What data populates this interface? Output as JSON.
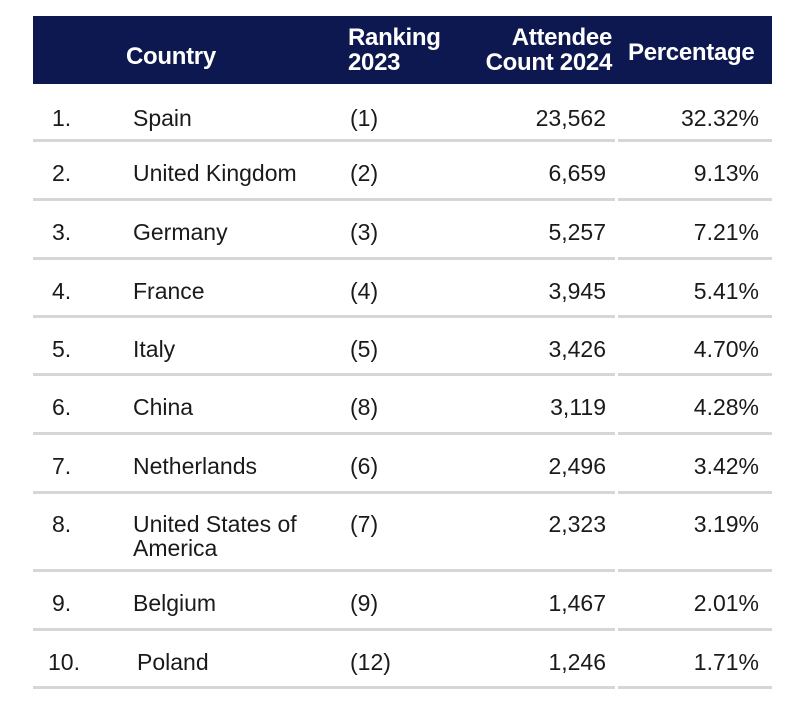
{
  "table": {
    "headers": {
      "country": "Country",
      "ranking_line1": "Ranking",
      "ranking_line2": "2023",
      "count_line1": "Attendee",
      "count_line2": "Count 2024",
      "percentage": "Percentage"
    },
    "rows": [
      {
        "num": "1.",
        "country": "Spain",
        "rank": "(1)",
        "count": "23,562",
        "pct": "32.32%"
      },
      {
        "num": "2.",
        "country": "United Kingdom",
        "rank": "(2)",
        "count": "6,659",
        "pct": "9.13%"
      },
      {
        "num": "3.",
        "country": "Germany",
        "rank": "(3)",
        "count": "5,257",
        "pct": "7.21%"
      },
      {
        "num": "4.",
        "country": "France",
        "rank": "(4)",
        "count": "3,945",
        "pct": "5.41%"
      },
      {
        "num": "5.",
        "country": "Italy",
        "rank": "(5)",
        "count": "3,426",
        "pct": "4.70%"
      },
      {
        "num": "6.",
        "country": "China",
        "rank": "(8)",
        "count": "3,119",
        "pct": "4.28%"
      },
      {
        "num": "7.",
        "country": "Netherlands",
        "rank": "(6)",
        "count": "2,496",
        "pct": "3.42%"
      },
      {
        "num": "8.",
        "country": "United States of America",
        "rank": "(7)",
        "count": "2,323",
        "pct": "3.19%"
      },
      {
        "num": "9.",
        "country": "Belgium",
        "rank": "(9)",
        "count": "1,467",
        "pct": "2.01%"
      },
      {
        "num": "10.",
        "country": "Poland",
        "rank": "(12)",
        "count": "1,246",
        "pct": "1.71%"
      }
    ]
  },
  "colors": {
    "header_bg": "#0d1850",
    "header_text": "#ffffff",
    "separator": "#d6d6d6"
  }
}
